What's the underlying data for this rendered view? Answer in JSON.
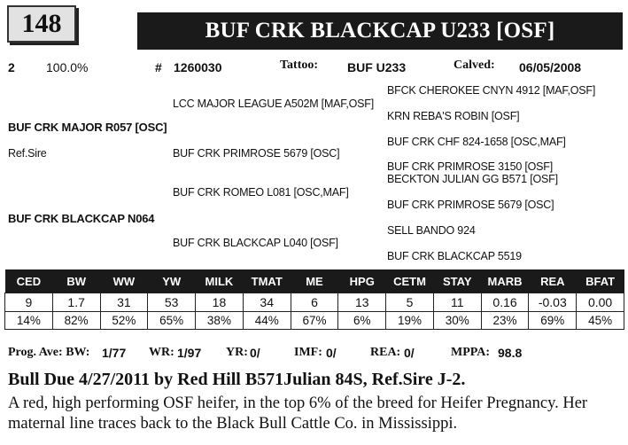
{
  "lot_number": "148",
  "animal_name": "BUF CRK BLACKCAP U233 [OSF]",
  "info": {
    "count": "2",
    "percent": "100.0%",
    "reg_symbol": "#",
    "reg_number": "1260030",
    "tattoo_label": "Tattoo:",
    "tattoo_value": "BUF U233",
    "calved_label": "Calved:",
    "calved_value": "06/05/2008"
  },
  "pedigree": {
    "sire": "BUF CRK MAJOR R057 [OSC]",
    "sire_note": "Ref.Sire",
    "dam": "BUF CRK BLACKCAP N064",
    "sire_sire": "LCC MAJOR LEAGUE A502M [MAF,OSF]",
    "sire_dam": "BUF CRK PRIMROSE 5679  [OSC]",
    "dam_sire": "BUF CRK ROMEO L081 [OSC,MAF]",
    "dam_dam": "BUF CRK BLACKCAP L040 [OSF]",
    "ggp": [
      "BFCK CHEROKEE CNYN 4912 [MAF,OSF]",
      "KRN REBA'S ROBIN [OSF]",
      "BUF CRK CHF 824-1658 [OSC,MAF]",
      "BUF CRK PRIMROSE 3150  [OSF]",
      "BECKTON JULIAN GG B571  [OSF]",
      "BUF CRK PRIMROSE 5679 [OSC]",
      "SELL BANDO 924",
      "BUF CRK BLACKCAP 5519"
    ]
  },
  "epd": {
    "headers": [
      "CED",
      "BW",
      "WW",
      "YW",
      "MILK",
      "TMAT",
      "ME",
      "HPG",
      "CETM",
      "STAY",
      "MARB",
      "REA",
      "BFAT"
    ],
    "values": [
      "9",
      "1.7",
      "31",
      "53",
      "18",
      "34",
      "6",
      "13",
      "5",
      "11",
      "0.16",
      "-0.03",
      "0.00"
    ],
    "percentiles": [
      "14%",
      "82%",
      "52%",
      "65%",
      "38%",
      "44%",
      "67%",
      "6%",
      "19%",
      "30%",
      "23%",
      "69%",
      "45%"
    ]
  },
  "progeny": {
    "bw_label": "Prog. Ave: BW:",
    "bw_value": "1/77",
    "wr_label": "WR:",
    "wr_value": "1/97",
    "yr_label": "YR:",
    "yr_value": "0/",
    "imf_label": "IMF:",
    "imf_value": "0/",
    "rea_label": "REA:",
    "rea_value": "0/",
    "mppa_label": "MPPA:",
    "mppa_value": "98.8"
  },
  "due_line": "Bull Due 4/27/2011 by Red Hill B571Julian 84S, Ref.Sire J-2.",
  "description": "A red, high performing OSF heifer, in the top 6% of the breed for Heifer Pregnancy. Her maternal line traces back to the Black Bull Cattle Co. in Mississippi."
}
